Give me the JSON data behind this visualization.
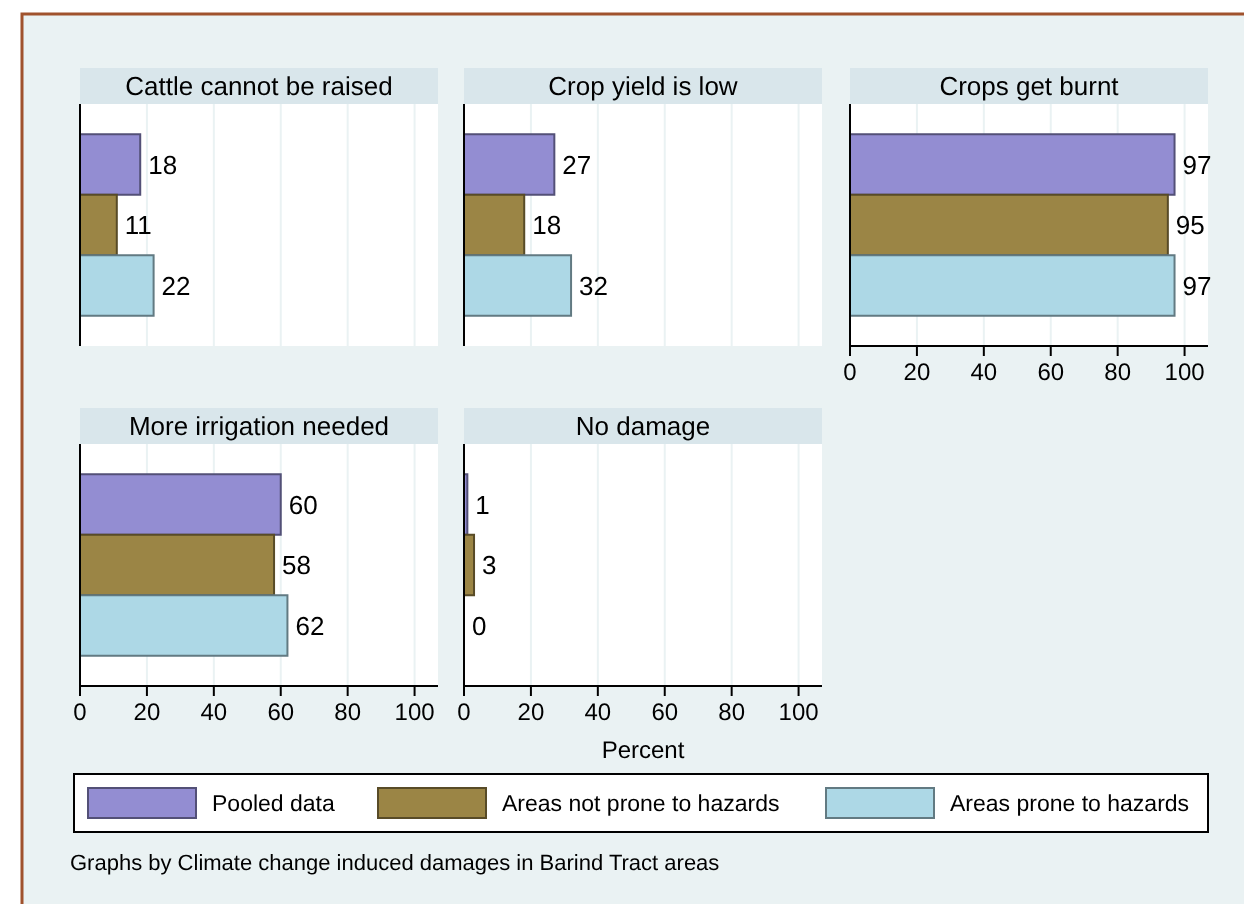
{
  "chart_data": [
    {
      "type": "bar",
      "orientation": "horizontal",
      "title": "Cattle cannot be raised",
      "categories": [
        null
      ],
      "xlim": [
        0,
        107
      ],
      "xticks": [
        0,
        20,
        40,
        60,
        80,
        100
      ],
      "grid": "x",
      "tick_labels": false,
      "data_labels": true,
      "legend": "bottom",
      "series": [
        {
          "name": "Pooled data",
          "color": "#938dd2",
          "values": [
            18
          ]
        },
        {
          "name": "Areas not prone to hazards",
          "color": "#9b8545",
          "values": [
            11
          ]
        },
        {
          "name": "Areas prone to hazards",
          "color": "#add8e6",
          "values": [
            22
          ]
        }
      ]
    },
    {
      "type": "bar",
      "orientation": "horizontal",
      "title": "Crop yield is low",
      "categories": [
        null
      ],
      "xlim": [
        0,
        107
      ],
      "xticks": [
        0,
        20,
        40,
        60,
        80,
        100
      ],
      "grid": "x",
      "tick_labels": false,
      "data_labels": true,
      "series": [
        {
          "color": "#938dd2",
          "values": [
            27
          ]
        },
        {
          "color": "#9b8545",
          "values": [
            18
          ]
        },
        {
          "color": "#add8e6",
          "values": [
            32
          ]
        }
      ]
    },
    {
      "type": "bar",
      "orientation": "horizontal",
      "title": "Crops get burnt",
      "categories": [
        null
      ],
      "xlim": [
        0,
        107
      ],
      "xticks": [
        0,
        20,
        40,
        60,
        80,
        100
      ],
      "grid": "x",
      "tick_labels": "x",
      "data_labels": true,
      "series": [
        {
          "color": "#938dd2",
          "values": [
            97
          ]
        },
        {
          "color": "#9b8545",
          "values": [
            95
          ]
        },
        {
          "color": "#add8e6",
          "values": [
            97
          ]
        }
      ]
    },
    {
      "type": "bar",
      "orientation": "horizontal",
      "title": "More irrigation needed",
      "categories": [
        null
      ],
      "xlim": [
        0,
        107
      ],
      "xticks": [
        0,
        20,
        40,
        60,
        80,
        100
      ],
      "grid": "x",
      "tick_labels": "x",
      "data_labels": true,
      "series": [
        {
          "color": "#938dd2",
          "values": [
            60
          ]
        },
        {
          "color": "#9b8545",
          "values": [
            58
          ]
        },
        {
          "color": "#add8e6",
          "values": [
            62
          ]
        }
      ]
    },
    {
      "type": "bar",
      "orientation": "horizontal",
      "title": "No damage",
      "categories": [
        null
      ],
      "xlim": [
        0,
        107
      ],
      "xticks": [
        0,
        20,
        40,
        60,
        80,
        100
      ],
      "grid": "x",
      "tick_labels": "x",
      "data_labels": true,
      "xlabel": "Percent",
      "annotations": [
        "Graphs by Climate change induced damages in Barind Tract areas"
      ],
      "series": [
        {
          "color": "#938dd2",
          "values": [
            1
          ]
        },
        {
          "color": "#9b8545",
          "values": [
            3
          ]
        },
        {
          "color": "#add8e6",
          "values": [
            0
          ]
        }
      ]
    }
  ]
}
